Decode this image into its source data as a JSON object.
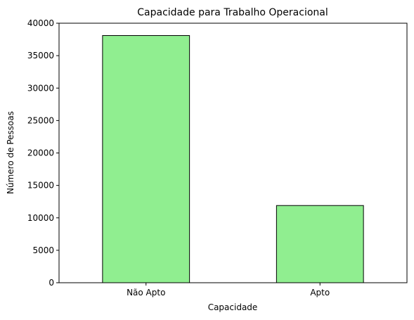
{
  "chart_data": {
    "type": "bar",
    "title": "Capacidade para Trabalho Operacional",
    "xlabel": "Capacidade",
    "ylabel": "Número de Pessoas",
    "categories": [
      "Não Apto",
      "Apto"
    ],
    "values": [
      38100,
      11900
    ],
    "ylim": [
      0,
      40000
    ],
    "yticks": [
      0,
      5000,
      10000,
      15000,
      20000,
      25000,
      30000,
      35000,
      40000
    ],
    "grid": false,
    "legend": "none",
    "bar_color": "#90ee90",
    "bar_edge_color": "#000000"
  }
}
